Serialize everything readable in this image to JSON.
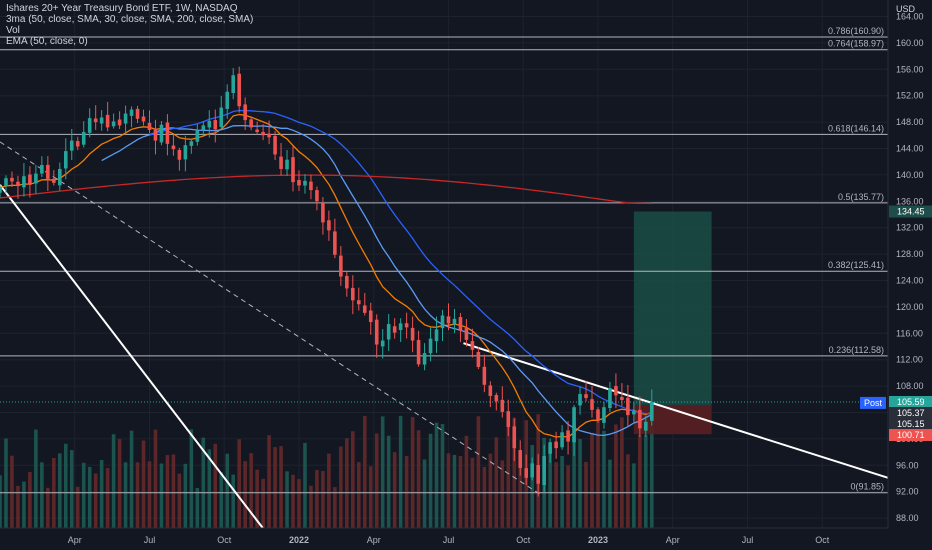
{
  "legend": {
    "title": "Ishares 20+ Year Treasury Bond ETF, 1W, NASDAQ",
    "ma": "3ma (50, close, SMA, 30, close, SMA, 200, close, SMA)",
    "vol": "Vol",
    "ema": "EMA (50, close, 0)"
  },
  "axis": {
    "currency": "USD",
    "post_label": "Post"
  },
  "colors": {
    "background": "#131722",
    "up": "#26a69a",
    "down": "#ef5350",
    "ma50": "#2962ff",
    "ma30": "#5b9cf6",
    "ma200": "#c62828",
    "ema50": "#f57c00",
    "fib": "#b2b5be",
    "target_zone": "#1b4d46",
    "stop_zone": "#5a1f22"
  },
  "chart_data": {
    "type": "candlestick",
    "title": "Ishares 20+ Year Treasury Bond ETF, 1W, NASDAQ",
    "interval": "1W",
    "y_ticks": [
      "164.00",
      "160.00",
      "156.00",
      "152.00",
      "148.00",
      "144.00",
      "140.00",
      "136.00",
      "132.00",
      "128.00",
      "124.00",
      "120.00",
      "116.00",
      "112.00",
      "108.00",
      "104.00",
      "100.00",
      "96.00",
      "92.00",
      "88.00"
    ],
    "ylim": [
      86.5,
      166.5
    ],
    "x_tick_labels": [
      "Apr",
      "Jul",
      "Oct",
      "2022",
      "Apr",
      "Jul",
      "Oct",
      "2023",
      "Apr",
      "Jul",
      "Oct"
    ],
    "x_ticks": [
      2021.25,
      2021.5,
      2021.75,
      2022.0,
      2022.25,
      2022.5,
      2022.75,
      2023.0,
      2023.25,
      2023.5,
      2023.75
    ],
    "xlim": [
      2021.0,
      2023.97
    ],
    "fib_levels": [
      {
        "label": "0.786(160.90)",
        "value": 160.9
      },
      {
        "label": "0.764(158.97)",
        "value": 158.97
      },
      {
        "label": "0.618(146.14)",
        "value": 146.14
      },
      {
        "label": "0.5(135.77)",
        "value": 135.77
      },
      {
        "label": "0.382(125.41)",
        "value": 125.41
      },
      {
        "label": "0.236(112.58)",
        "value": 112.58
      },
      {
        "label": "0(91.85)",
        "value": 91.85
      }
    ],
    "price_labels": [
      {
        "text": "134.45",
        "value": 134.45,
        "color": "#1e4e4a"
      },
      {
        "text": "105.59",
        "value": 105.59,
        "color": "#26a69a"
      },
      {
        "text": "105.37",
        "value": 105.37,
        "color": "#2a2e39"
      },
      {
        "text": "105.15",
        "value": 105.15,
        "color": "#2a2e39"
      },
      {
        "text": "100.71",
        "value": 100.71,
        "color": "#ef5350"
      }
    ],
    "position": {
      "entry": 105.15,
      "target": 134.45,
      "stop": 100.71,
      "start": 2023.12,
      "end": 2023.38
    },
    "weekly_close": [
      138.1,
      139.5,
      139.0,
      138.3,
      139.8,
      138.5,
      140.2,
      141.5,
      139.4,
      138.8,
      140.9,
      143.6,
      145.2,
      144.3,
      146.5,
      148.6,
      148.0,
      148.7,
      147.2,
      148.1,
      147.5,
      149.3,
      149.9,
      148.5,
      148.1,
      146.8,
      145.2,
      147.6,
      144.7,
      143.9,
      142.3,
      144.5,
      145.1,
      146.7,
      147.5,
      148.2,
      146.9,
      150.2,
      152.6,
      155.1,
      150.4,
      148.3,
      147.2,
      146.5,
      146.0,
      145.7,
      143.1,
      140.9,
      142.3,
      138.9,
      138.4,
      139.1,
      137.7,
      136.0,
      132.8,
      131.6,
      127.9,
      124.6,
      122.8,
      121.0,
      120.4,
      119.1,
      117.7,
      114.3,
      114.9,
      117.4,
      116.1,
      117.5,
      116.9,
      114.9,
      111.3,
      113.0,
      115.2,
      116.6,
      118.7,
      117.5,
      118.2,
      116.4,
      115.0,
      113.5,
      110.9,
      108.2,
      106.5,
      105.7,
      104.1,
      101.8,
      98.6,
      95.6,
      94.1,
      96.3,
      93.2,
      97.4,
      99.5,
      98.6,
      101.0,
      99.6,
      104.8,
      106.8,
      106.2,
      104.4,
      102.8,
      104.8,
      107.7,
      106.6,
      105.9,
      103.6,
      104.2,
      101.6,
      102.6,
      105.59
    ]
  }
}
